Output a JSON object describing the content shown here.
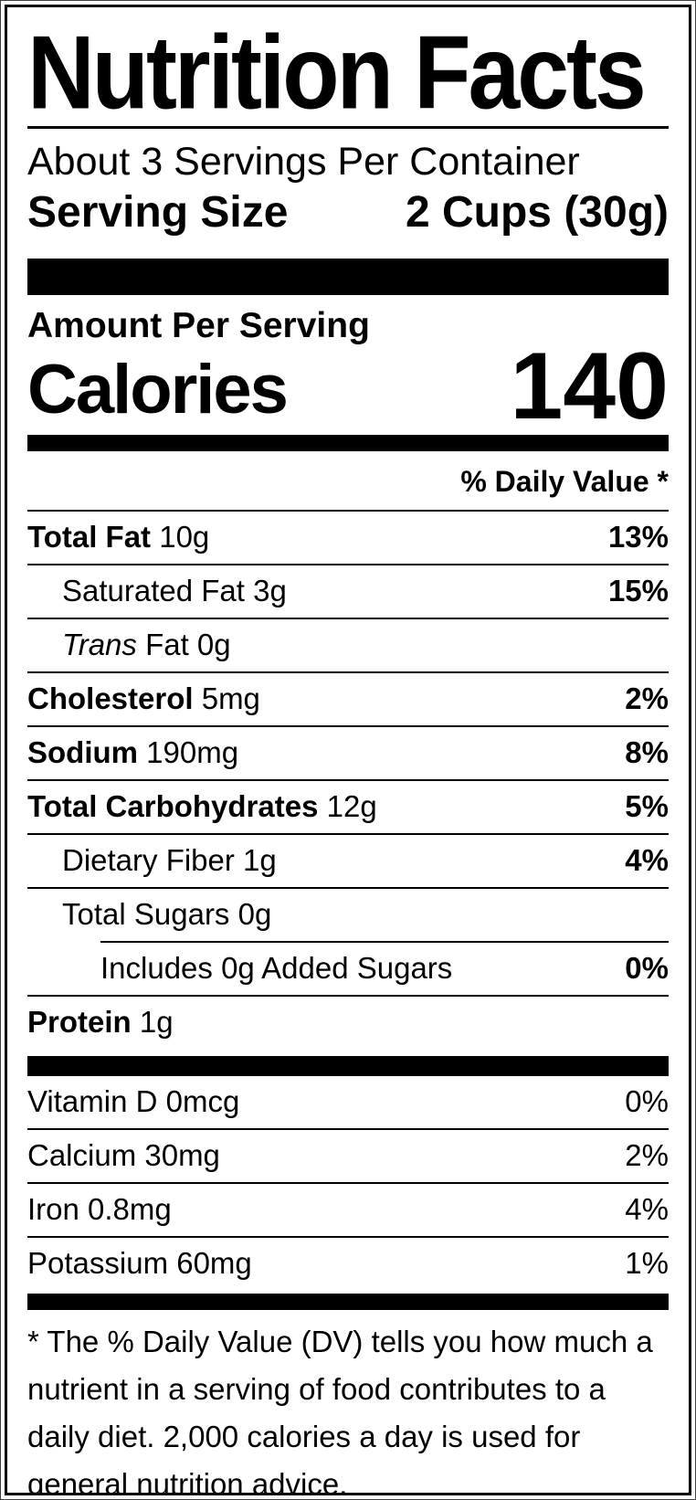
{
  "colors": {
    "ink": "#000000",
    "background": "#ffffff"
  },
  "title": "Nutrition Facts",
  "servings_per_container": "About 3 Servings Per Container",
  "serving_size": {
    "label": "Serving Size",
    "value": "2 Cups (30g)"
  },
  "calories": {
    "header": "Amount Per Serving",
    "label": "Calories",
    "value": "140"
  },
  "daily_value_header": "% Daily Value *",
  "nutrients": [
    {
      "parts": [
        {
          "text": "Total Fat",
          "bold": true
        },
        {
          "text": " 10g"
        }
      ],
      "dv": "13%",
      "dv_bold": true,
      "indent": 0,
      "divider": "none"
    },
    {
      "parts": [
        {
          "text": "Saturated Fat 3g"
        }
      ],
      "dv": "15%",
      "dv_bold": true,
      "indent": 1,
      "divider": "full"
    },
    {
      "parts": [
        {
          "text": "Trans",
          "italic": true
        },
        {
          "text": " Fat 0g"
        }
      ],
      "dv": "",
      "dv_bold": false,
      "indent": 1,
      "divider": "full"
    },
    {
      "parts": [
        {
          "text": "Cholesterol",
          "bold": true
        },
        {
          "text": " 5mg"
        }
      ],
      "dv": "2%",
      "dv_bold": true,
      "indent": 0,
      "divider": "full"
    },
    {
      "parts": [
        {
          "text": "Sodium",
          "bold": true
        },
        {
          "text": " 190mg"
        }
      ],
      "dv": "8%",
      "dv_bold": true,
      "indent": 0,
      "divider": "full"
    },
    {
      "parts": [
        {
          "text": "Total Carbohydrates",
          "bold": true
        },
        {
          "text": " 12g"
        }
      ],
      "dv": "5%",
      "dv_bold": true,
      "indent": 0,
      "divider": "full"
    },
    {
      "parts": [
        {
          "text": "Dietary Fiber 1g"
        }
      ],
      "dv": "4%",
      "dv_bold": true,
      "indent": 1,
      "divider": "full"
    },
    {
      "parts": [
        {
          "text": "Total Sugars 0g"
        }
      ],
      "dv": "",
      "dv_bold": false,
      "indent": 1,
      "divider": "full"
    },
    {
      "parts": [
        {
          "text": "Includes 0g Added Sugars"
        }
      ],
      "dv": "0%",
      "dv_bold": true,
      "indent": 2,
      "divider": "partial"
    },
    {
      "parts": [
        {
          "text": "Protein",
          "bold": true
        },
        {
          "text": " 1g"
        }
      ],
      "dv": "",
      "dv_bold": false,
      "indent": 0,
      "divider": "full"
    }
  ],
  "vitamins": [
    {
      "parts": [
        {
          "text": "Vitamin D 0mcg"
        }
      ],
      "dv": "0%",
      "dv_bold": false,
      "indent": 0,
      "divider": "none"
    },
    {
      "parts": [
        {
          "text": "Calcium 30mg"
        }
      ],
      "dv": "2%",
      "dv_bold": false,
      "indent": 0,
      "divider": "full"
    },
    {
      "parts": [
        {
          "text": "Iron 0.8mg"
        }
      ],
      "dv": "4%",
      "dv_bold": false,
      "indent": 0,
      "divider": "full"
    },
    {
      "parts": [
        {
          "text": "Potassium 60mg"
        }
      ],
      "dv": "1%",
      "dv_bold": false,
      "indent": 0,
      "divider": "full"
    }
  ],
  "footnote": "* The % Daily Value (DV) tells you how much a nutrient in a serving of food contributes to a daily diet. 2,000 calories a day is used for general nutrition advice."
}
